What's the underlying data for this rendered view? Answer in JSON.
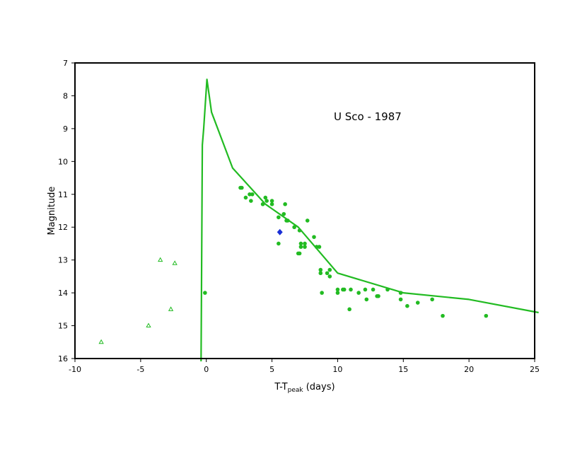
{
  "chart_data": {
    "type": "scatter",
    "title": "",
    "annotation": "U Sco - 1987",
    "xlabel": {
      "main": "T-T",
      "sub": "peak",
      "rest": " (days)"
    },
    "ylabel": "Magnitude",
    "xlim": [
      -10,
      25
    ],
    "ylim": [
      7,
      16
    ],
    "y_inverted": true,
    "x_ticks": [
      -10,
      -5,
      0,
      5,
      10,
      15,
      20,
      25
    ],
    "y_ticks": [
      7,
      8,
      9,
      10,
      11,
      12,
      13,
      14,
      15,
      16
    ],
    "grid": false,
    "legend": "none",
    "colors": {
      "green": "#22bb22",
      "blue": "#1a2fd6",
      "frame": "#000000"
    },
    "series": [
      {
        "style": "line",
        "color": "#22bb22",
        "points": [
          [
            -0.4,
            16.1
          ],
          [
            -0.3,
            9.5
          ],
          [
            -0.2,
            9.0
          ],
          [
            0.05,
            7.5
          ],
          [
            0.4,
            8.5
          ],
          [
            2.0,
            10.2
          ],
          [
            4.5,
            11.3
          ],
          [
            7.0,
            12.0
          ],
          [
            8.5,
            12.7
          ],
          [
            10.0,
            13.4
          ],
          [
            15.0,
            14.0
          ],
          [
            20.0,
            14.2
          ],
          [
            25.3,
            14.6
          ]
        ]
      },
      {
        "style": "dots",
        "color": "#22bb22",
        "points": [
          [
            -0.1,
            14.0
          ],
          [
            2.6,
            10.8
          ],
          [
            2.7,
            10.8
          ],
          [
            3.0,
            11.1
          ],
          [
            3.3,
            11.0
          ],
          [
            3.4,
            11.2
          ],
          [
            3.5,
            11.0
          ],
          [
            4.3,
            11.3
          ],
          [
            4.5,
            11.1
          ],
          [
            4.6,
            11.2
          ],
          [
            5.0,
            11.2
          ],
          [
            5.0,
            11.3
          ],
          [
            5.5,
            11.7
          ],
          [
            5.5,
            12.5
          ],
          [
            5.9,
            11.6
          ],
          [
            6.0,
            11.3
          ],
          [
            6.1,
            11.8
          ],
          [
            6.2,
            11.8
          ],
          [
            6.7,
            12.0
          ],
          [
            7.0,
            12.8
          ],
          [
            7.1,
            12.1
          ],
          [
            7.1,
            12.8
          ],
          [
            7.2,
            12.5
          ],
          [
            7.2,
            12.6
          ],
          [
            7.5,
            12.5
          ],
          [
            7.5,
            12.6
          ],
          [
            7.7,
            11.8
          ],
          [
            8.2,
            12.3
          ],
          [
            8.4,
            12.6
          ],
          [
            8.6,
            12.6
          ],
          [
            8.7,
            13.3
          ],
          [
            8.7,
            13.4
          ],
          [
            8.8,
            14.0
          ],
          [
            9.2,
            13.4
          ],
          [
            9.4,
            13.3
          ],
          [
            9.4,
            13.5
          ],
          [
            10.0,
            13.9
          ],
          [
            10.0,
            14.0
          ],
          [
            10.4,
            13.9
          ],
          [
            10.5,
            13.9
          ],
          [
            10.9,
            14.5
          ],
          [
            11.0,
            13.9
          ],
          [
            11.6,
            14.0
          ],
          [
            12.1,
            13.9
          ],
          [
            12.2,
            14.2
          ],
          [
            12.7,
            13.9
          ],
          [
            13.0,
            14.1
          ],
          [
            13.1,
            14.1
          ],
          [
            13.8,
            13.9
          ],
          [
            14.8,
            14.0
          ],
          [
            14.8,
            14.2
          ],
          [
            15.3,
            14.4
          ],
          [
            16.1,
            14.3
          ],
          [
            17.2,
            14.2
          ],
          [
            18.0,
            14.7
          ],
          [
            21.3,
            14.7
          ]
        ]
      },
      {
        "style": "triangles",
        "color": "#22bb22",
        "points": [
          [
            -8.0,
            15.5
          ],
          [
            -4.4,
            15.0
          ],
          [
            -3.5,
            13.0
          ],
          [
            -2.7,
            14.5
          ],
          [
            -2.4,
            13.1
          ]
        ]
      },
      {
        "style": "diamond",
        "color": "#1a2fd6",
        "points": [
          [
            5.6,
            12.15
          ]
        ]
      }
    ]
  }
}
